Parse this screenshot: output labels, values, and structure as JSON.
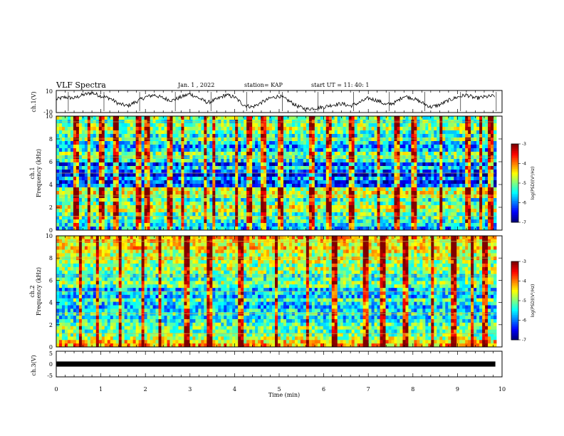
{
  "header": {
    "title": "VLF Spectra",
    "date": "Jan. 1 , 2022",
    "station": "station= KAP",
    "start_ut": "start UT = 11: 40: 1"
  },
  "chart_data": [
    {
      "id": "waveform-ch1",
      "type": "line",
      "ylabel": "ch.1(V)",
      "ylim": [
        -10,
        10
      ],
      "yticks": [
        "10",
        "-10"
      ],
      "xlim": [
        0,
        10
      ],
      "x": [
        0.0,
        0.2,
        0.4,
        0.6,
        0.8,
        1.0,
        1.2,
        1.4,
        1.6,
        1.8,
        2.0,
        2.2,
        2.4,
        2.6,
        2.8,
        3.0,
        3.2,
        3.4,
        3.6,
        3.8,
        4.0,
        4.2,
        4.4,
        4.6,
        4.8,
        5.0,
        5.2,
        5.4,
        5.6,
        5.8,
        6.0,
        6.2,
        6.4,
        6.6,
        6.8,
        7.0,
        7.2,
        7.4,
        7.6,
        7.8,
        8.0,
        8.2,
        8.4,
        8.6,
        8.8,
        9.0,
        9.2,
        9.4,
        9.6,
        9.8
      ],
      "y": [
        2,
        4,
        3,
        6,
        8,
        5,
        3,
        -2,
        -4,
        0,
        4,
        6,
        3,
        1,
        4,
        7,
        3,
        -1,
        2,
        6,
        4,
        -3,
        -5,
        -1,
        3,
        5,
        1,
        -4,
        -7,
        -6,
        -5,
        -3,
        -2,
        -4,
        -1,
        3,
        1,
        -3,
        -1,
        5,
        3,
        -1,
        -5,
        -3,
        1,
        4,
        6,
        3,
        4,
        5
      ]
    },
    {
      "id": "spectrogram-ch1",
      "type": "heatmap",
      "ylabel": "ch.1",
      "ylabel2": "Frequency (kHz)",
      "ylim": [
        0,
        10
      ],
      "yticks": [
        "0",
        "2",
        "4",
        "6",
        "8",
        "10"
      ],
      "xlim": [
        0,
        10
      ],
      "colorbar": {
        "label": "log(PSD)(V²/Hz)",
        "range": [
          -7,
          -3
        ],
        "ticks": [
          "-3",
          "-4",
          "-5",
          "-6",
          "-7"
        ]
      },
      "band_levels": [
        0.3,
        0.35,
        0.4,
        0.45,
        0.45,
        0.55,
        0.6,
        0.5,
        0.4,
        0.55,
        0.6,
        0.55,
        0.2,
        0.15,
        0.3,
        0.1,
        0.2,
        0.35,
        0.15,
        0.4,
        0.45,
        0.5,
        0.3,
        0.25,
        0.35,
        0.5,
        0.4,
        0.45,
        0.55,
        0.5,
        0.45,
        0.5
      ],
      "burst_times_min": [
        0.4,
        0.7,
        1.0,
        1.3,
        1.8,
        2.0,
        2.5,
        2.8,
        3.3,
        3.5,
        4.0,
        4.3,
        4.6,
        5.0,
        5.7,
        6.1,
        6.6,
        7.2,
        7.6,
        8.0,
        8.6,
        9.2,
        9.5,
        9.7
      ]
    },
    {
      "id": "spectrogram-ch2",
      "type": "heatmap",
      "ylabel": "ch.2",
      "ylabel2": "Frequency (kHz)",
      "ylim": [
        0,
        10
      ],
      "yticks": [
        "0",
        "2",
        "4",
        "6",
        "8",
        "10"
      ],
      "xlim": [
        0,
        10
      ],
      "colorbar": {
        "label": "log(PSD)(V²/Hz)",
        "range": [
          -7,
          -3
        ],
        "ticks": [
          "-3",
          "-4",
          "-5",
          "-6",
          "-7"
        ]
      },
      "band_levels": [
        0.7,
        0.65,
        0.55,
        0.5,
        0.45,
        0.5,
        0.45,
        0.4,
        0.35,
        0.4,
        0.35,
        0.3,
        0.35,
        0.45,
        0.3,
        0.35,
        0.3,
        0.45,
        0.5,
        0.45,
        0.4,
        0.5,
        0.55,
        0.5,
        0.55,
        0.6,
        0.55,
        0.6,
        0.65,
        0.6,
        0.65,
        0.7
      ],
      "burst_times_min": [
        0.5,
        0.9,
        1.4,
        1.9,
        2.3,
        2.9,
        3.4,
        4.1,
        4.9,
        5.6,
        6.2,
        6.9,
        7.3,
        7.8,
        8.4,
        8.9,
        9.3,
        9.6
      ]
    },
    {
      "id": "waveform-ch3",
      "type": "line",
      "ylabel": "ch.3(V)",
      "ylim": [
        -5,
        5
      ],
      "yticks": [
        "5",
        "0",
        "-5"
      ],
      "xlim": [
        0,
        10
      ],
      "x": [
        0,
        9.85
      ],
      "y": [
        0,
        0
      ],
      "amplitude": 1.0
    }
  ],
  "xaxis": {
    "label": "Time (min)",
    "ticks": [
      "0",
      "1",
      "2",
      "3",
      "4",
      "5",
      "6",
      "7",
      "8",
      "9",
      "10"
    ]
  },
  "colors": {
    "line": "#000000",
    "axis": "#000000",
    "background": "#ffffff"
  }
}
